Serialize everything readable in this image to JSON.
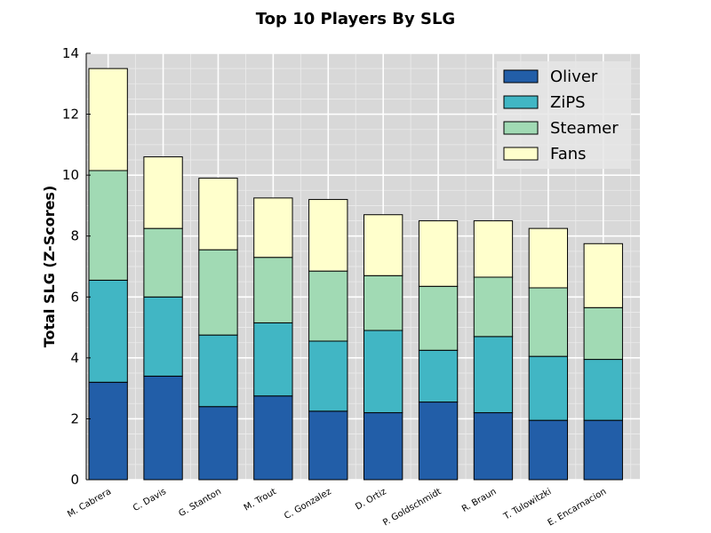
{
  "chart_data": {
    "type": "bar",
    "stacked": true,
    "title": "Top 10 Players By SLG",
    "xlabel": "",
    "ylabel": "Total SLG (Z-Scores)",
    "ylim": [
      0,
      14
    ],
    "yticks": [
      "0",
      "2",
      "4",
      "6",
      "8",
      "10",
      "12",
      "14"
    ],
    "grid": true,
    "legend_position": "top-right",
    "categories": [
      "M. Cabrera",
      "C. Davis",
      "G. Stanton",
      "M. Trout",
      "C. Gonzalez",
      "D. Ortiz",
      "P. Goldschmidt",
      "R. Braun",
      "T. Tulowitzki",
      "E. Encarnacion"
    ],
    "series": [
      {
        "name": "Oliver",
        "color": "#225ea8",
        "values": [
          3.2,
          3.4,
          2.4,
          2.75,
          2.25,
          2.2,
          2.55,
          2.2,
          1.95,
          1.95
        ]
      },
      {
        "name": "ZiPS",
        "color": "#41b6c4",
        "values": [
          3.35,
          2.6,
          2.35,
          2.4,
          2.3,
          2.7,
          1.7,
          2.5,
          2.1,
          2.0
        ]
      },
      {
        "name": "Steamer",
        "color": "#a1dab4",
        "values": [
          3.6,
          2.25,
          2.8,
          2.15,
          2.3,
          1.8,
          2.1,
          1.95,
          2.25,
          1.7
        ]
      },
      {
        "name": "Fans",
        "color": "#ffffcc",
        "values": [
          3.35,
          2.35,
          2.35,
          1.95,
          2.35,
          2.0,
          2.15,
          1.85,
          1.95,
          2.1
        ]
      }
    ]
  }
}
